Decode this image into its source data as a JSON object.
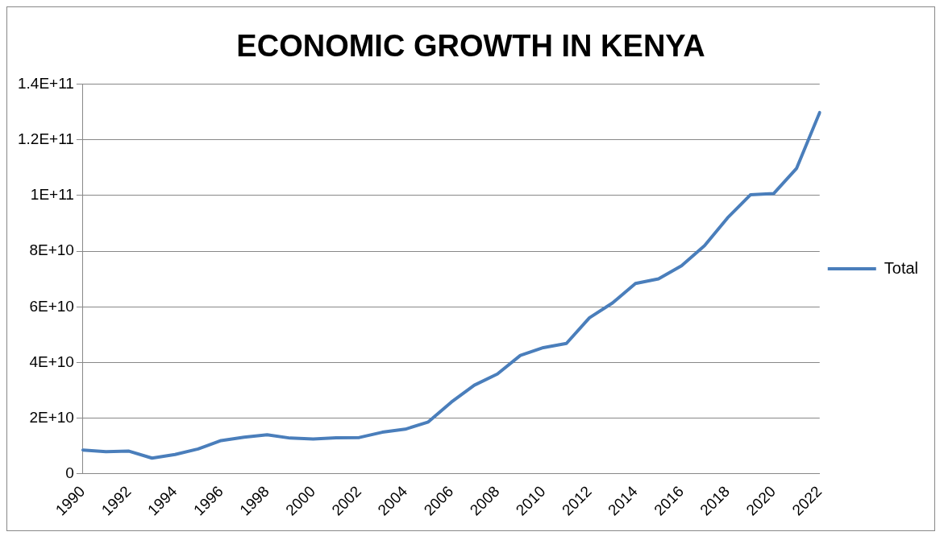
{
  "chart_data": {
    "type": "line",
    "title": "ECONOMIC GROWTH IN KENYA",
    "categories": [
      "1990",
      null,
      "1992",
      null,
      "1994",
      null,
      "1996",
      null,
      "1998",
      null,
      "2000",
      null,
      "2002",
      null,
      "2004",
      null,
      "2006",
      null,
      "2008",
      null,
      "2010",
      null,
      "2012",
      null,
      "2014",
      null,
      "2016",
      null,
      "2018",
      null,
      "2020",
      null,
      "2022"
    ],
    "series": [
      {
        "name": "Total",
        "color": "#4a7ebb",
        "values": [
          8600000000,
          8000000000,
          8200000000,
          5700000000,
          7000000000,
          9000000000,
          12000000000,
          13200000000,
          14100000000,
          12900000000,
          12600000000,
          13000000000,
          13100000000,
          15000000000,
          16100000000,
          18700000000,
          25800000000,
          31900000000,
          35900000000,
          42600000000,
          45400000000,
          46900000000,
          56100000000,
          61400000000,
          68400000000,
          70100000000,
          74800000000,
          82000000000,
          92000000000,
          100300000000,
          100700000000,
          109800000000,
          129800000000
        ]
      }
    ],
    "ylim": [
      0,
      140000000000
    ],
    "yticks": [
      {
        "value": 0,
        "label": "0"
      },
      {
        "value": 20000000000,
        "label": "2E+10"
      },
      {
        "value": 40000000000,
        "label": "4E+10"
      },
      {
        "value": 60000000000,
        "label": "6E+10"
      },
      {
        "value": 80000000000,
        "label": "8E+10"
      },
      {
        "value": 100000000000,
        "label": "1E+11"
      },
      {
        "value": 120000000000,
        "label": "1.2E+11"
      },
      {
        "value": 140000000000,
        "label": "1.4E+11"
      }
    ],
    "grid": "y",
    "legend": "right",
    "marker": "none",
    "line_style": "solid"
  }
}
